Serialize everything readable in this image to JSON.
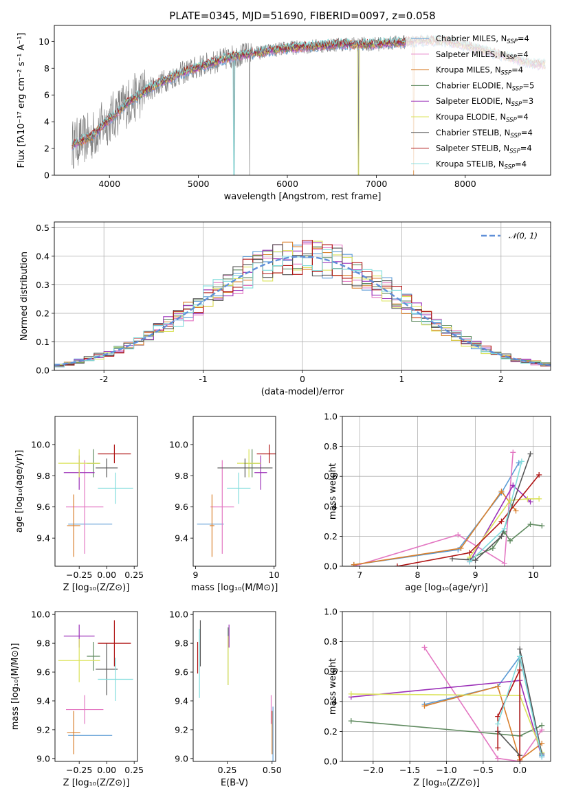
{
  "figure_title": "PLATE=0345, MJD=51690, FIBERID=0097, z=0.058",
  "colors": {
    "Chabrier MILES": "#5b9bd5",
    "Salpeter MILES": "#e377c2",
    "Kroupa MILES": "#d97f2b",
    "Chabrier ELODIE": "#5f8a5f",
    "Salpeter ELODIE": "#9b30b8",
    "Kroupa ELODIE": "#dbe35a",
    "Chabrier STELIB": "#555555",
    "Salpeter STELIB": "#b01515",
    "Kroupa STELIB": "#7fdcdc",
    "observed": "#808080",
    "normal": "#5f8fd8"
  },
  "chart_data": [
    {
      "type": "line",
      "panel": "spectrum",
      "title": "PLATE=0345, MJD=51690, FIBERID=0097, z=0.058",
      "xlabel": "wavelength [Angstrom, rest frame]",
      "ylabel": "Flux [fλ10⁻¹⁷ erg cm⁻² s⁻¹ A⁻¹]",
      "xlim": [
        3380,
        8960
      ],
      "ylim": [
        0,
        11.2
      ],
      "xticks": [
        4000,
        5000,
        6000,
        7000,
        8000
      ],
      "yticks": [
        0,
        2,
        4,
        6,
        8,
        10
      ],
      "legend": [
        "Chabrier MILES, N_SSP=4",
        "Salpeter MILES, N_SSP=4",
        "Kroupa MILES, N_SSP=4",
        "Chabrier ELODIE, N_SSP=5",
        "Salpeter ELODIE, N_SSP=3",
        "Kroupa ELODIE, N_SSP=4",
        "Chabrier STELIB, N_SSP=4",
        "Salpeter STELIB, N_SSP=4",
        "Kroupa STELIB, N_SSP=4"
      ],
      "legend_location": "right",
      "observed_range": [
        3580,
        7420
      ],
      "continuum": {
        "x": [
          3580,
          3800,
          4000,
          4200,
          4400,
          4600,
          4800,
          5000,
          5200,
          5400,
          5600,
          5800,
          6000,
          6200,
          6400,
          6600,
          6800,
          7000,
          7200,
          7400,
          7600,
          7800,
          8000,
          8200,
          8400,
          8600,
          8800
        ],
        "y": [
          2.3,
          2.9,
          4.2,
          5.4,
          6.3,
          7.0,
          7.6,
          8.1,
          8.5,
          8.9,
          9.1,
          9.3,
          9.5,
          9.6,
          9.7,
          9.8,
          9.8,
          9.8,
          9.9,
          10.0,
          10.1,
          10.0,
          9.7,
          9.4,
          9.0,
          8.6,
          8.3
        ]
      }
    },
    {
      "type": "line",
      "panel": "residual-histogram",
      "xlabel": "(data-model)/error",
      "ylabel": "Normed distribution",
      "xlim": [
        -2.5,
        2.5
      ],
      "ylim": [
        0,
        0.52
      ],
      "xticks": [
        -2,
        -1,
        0,
        1,
        2
      ],
      "yticks": [
        0.0,
        0.1,
        0.2,
        0.3,
        0.4,
        0.5
      ],
      "grid": true,
      "legend": [
        "𝒩(0, 1)"
      ],
      "legend_location": "top-right",
      "bin_width": 0.1,
      "bin_start": -2.5,
      "reference_curve": "normal(0,1)"
    },
    {
      "type": "scatter",
      "panel": "age-vs-Z",
      "xlabel": "Z [log₁₀(Z/Z⊙)]",
      "ylabel": "age  [log₁₀(age/yr)]",
      "xlim": [
        -0.47,
        0.28
      ],
      "ylim": [
        9.22,
        10.18
      ],
      "xticks": [
        -0.25,
        0.0,
        0.25
      ],
      "xticklabels": [
        "−0.25",
        "0.00",
        "0.25"
      ],
      "yticks": [
        9.4,
        9.6,
        9.8,
        10.0
      ],
      "points": [
        {
          "series": "Chabrier MILES",
          "x": -0.15,
          "xerr": 0.2,
          "y": 9.49,
          "yerr": 0.0
        },
        {
          "series": "Salpeter MILES",
          "x": -0.2,
          "xerr": 0.17,
          "y": 9.6,
          "yerr": 0.3
        },
        {
          "series": "Kroupa MILES",
          "x": -0.3,
          "xerr": 0.06,
          "y": 9.48,
          "yerr": 0.2
        },
        {
          "series": "Chabrier ELODIE",
          "x": -0.12,
          "xerr": 0.06,
          "y": 9.88,
          "yerr": 0.09
        },
        {
          "series": "Salpeter ELODIE",
          "x": -0.25,
          "xerr": 0.14,
          "y": 9.82,
          "yerr": 0.11
        },
        {
          "series": "Kroupa ELODIE",
          "x": -0.25,
          "xerr": 0.19,
          "y": 9.88,
          "yerr": 0.09
        },
        {
          "series": "Chabrier STELIB",
          "x": 0.0,
          "xerr": 0.1,
          "y": 9.85,
          "yerr": 0.06
        },
        {
          "series": "Salpeter STELIB",
          "x": 0.07,
          "xerr": 0.15,
          "y": 9.94,
          "yerr": 0.06
        },
        {
          "series": "Kroupa STELIB",
          "x": 0.08,
          "xerr": 0.16,
          "y": 9.72,
          "yerr": 0.1
        }
      ]
    },
    {
      "type": "scatter",
      "panel": "age-vs-mass",
      "xlabel": "mass [log₁₀(M/M⊙)]",
      "ylabel": "",
      "xlim": [
        8.97,
        10.02
      ],
      "ylim": [
        9.22,
        10.18
      ],
      "xticks": [
        9,
        10
      ],
      "yticks": [
        9.4,
        9.6,
        9.8,
        10.0
      ],
      "points": [
        {
          "series": "Chabrier MILES",
          "x": 9.19,
          "xerr": 0.17,
          "y": 9.49,
          "yerr": 0.0
        },
        {
          "series": "Salpeter MILES",
          "x": 9.34,
          "xerr": 0.15,
          "y": 9.6,
          "yerr": 0.3
        },
        {
          "series": "Kroupa MILES",
          "x": 9.21,
          "xerr": 0.03,
          "y": 9.48,
          "yerr": 0.2
        },
        {
          "series": "Chabrier ELODIE",
          "x": 9.72,
          "xerr": 0.1,
          "y": 9.88,
          "yerr": 0.09
        },
        {
          "series": "Salpeter ELODIE",
          "x": 9.83,
          "xerr": 0.08,
          "y": 9.82,
          "yerr": 0.11
        },
        {
          "series": "Kroupa ELODIE",
          "x": 9.68,
          "xerr": 0.15,
          "y": 9.88,
          "yerr": 0.09
        },
        {
          "series": "Chabrier STELIB",
          "x": 9.63,
          "xerr": 0.35,
          "y": 9.85,
          "yerr": 0.06
        },
        {
          "series": "Salpeter STELIB",
          "x": 9.94,
          "xerr": 0.16,
          "y": 9.94,
          "yerr": 0.06
        },
        {
          "series": "Kroupa STELIB",
          "x": 9.55,
          "xerr": 0.15,
          "y": 9.72,
          "yerr": 0.1
        }
      ]
    },
    {
      "type": "line",
      "panel": "mass-weight-vs-age",
      "xlabel": "age  [log₁₀(age/yr)]",
      "ylabel": "mass weight",
      "xlim": [
        6.7,
        10.3
      ],
      "ylim": [
        0,
        1.0
      ],
      "xticks": [
        7,
        8,
        9,
        10
      ],
      "yticks": [
        0.0,
        0.2,
        0.4,
        0.6,
        0.8,
        1.0
      ],
      "grid": true,
      "series": [
        {
          "name": "Chabrier MILES",
          "x": [
            6.9,
            8.7,
            9.45,
            9.75
          ],
          "y": [
            0.01,
            0.11,
            0.49,
            0.69
          ]
        },
        {
          "name": "Salpeter MILES",
          "x": [
            6.9,
            8.7,
            9.5,
            9.65
          ],
          "y": [
            0.0,
            0.21,
            0.02,
            0.76
          ]
        },
        {
          "name": "Kroupa MILES",
          "x": [
            6.9,
            8.75,
            9.45,
            9.7
          ],
          "y": [
            0.01,
            0.12,
            0.5,
            0.37
          ]
        },
        {
          "name": "Chabrier ELODIE",
          "x": [
            8.9,
            9.3,
            9.5,
            9.6,
            9.95,
            10.15
          ],
          "y": [
            0.05,
            0.12,
            0.23,
            0.17,
            0.28,
            0.27
          ]
        },
        {
          "name": "Salpeter ELODIE",
          "x": [
            8.9,
            9.65,
            9.95
          ],
          "y": [
            0.03,
            0.54,
            0.43
          ]
        },
        {
          "name": "Kroupa ELODIE",
          "x": [
            8.9,
            9.6,
            9.9,
            10.1
          ],
          "y": [
            0.06,
            0.44,
            0.45,
            0.45
          ]
        },
        {
          "name": "Chabrier STELIB",
          "x": [
            8.6,
            9.0,
            9.45,
            9.95
          ],
          "y": [
            0.05,
            0.04,
            0.2,
            0.75
          ]
        },
        {
          "name": "Salpeter STELIB",
          "x": [
            7.65,
            8.9,
            9.45,
            10.1
          ],
          "y": [
            0.0,
            0.09,
            0.3,
            0.61
          ]
        },
        {
          "name": "Kroupa STELIB",
          "x": [
            8.9,
            9.5,
            9.8
          ],
          "y": [
            0.03,
            0.25,
            0.7
          ]
        }
      ]
    },
    {
      "type": "scatter",
      "panel": "mass-vs-Z",
      "xlabel": "Z [log₁₀(Z/Z⊙)]",
      "ylabel": "mass [log₁₀(M/M⊙)]",
      "xlim": [
        -0.47,
        0.28
      ],
      "ylim": [
        8.98,
        10.02
      ],
      "xticks": [
        -0.25,
        0.0,
        0.25
      ],
      "xticklabels": [
        "−0.25",
        "0.00",
        "0.25"
      ],
      "yticks": [
        9.0,
        9.2,
        9.4,
        9.6,
        9.8,
        10.0
      ],
      "points": [
        {
          "series": "Chabrier MILES",
          "x": -0.15,
          "xerr": 0.2,
          "y": 9.16,
          "yerr": 0.0
        },
        {
          "series": "Salpeter MILES",
          "x": -0.2,
          "xerr": 0.17,
          "y": 9.34,
          "yerr": 0.1
        },
        {
          "series": "Kroupa MILES",
          "x": -0.3,
          "xerr": 0.06,
          "y": 9.18,
          "yerr": 0.15
        },
        {
          "series": "Chabrier ELODIE",
          "x": -0.12,
          "xerr": 0.06,
          "y": 9.71,
          "yerr": 0.1
        },
        {
          "series": "Salpeter ELODIE",
          "x": -0.25,
          "xerr": 0.14,
          "y": 9.85,
          "yerr": 0.08
        },
        {
          "series": "Kroupa ELODIE",
          "x": -0.25,
          "xerr": 0.19,
          "y": 9.68,
          "yerr": 0.15
        },
        {
          "series": "Chabrier STELIB",
          "x": 0.0,
          "xerr": 0.1,
          "y": 9.62,
          "yerr": 0.18
        },
        {
          "series": "Salpeter STELIB",
          "x": 0.07,
          "xerr": 0.15,
          "y": 9.8,
          "yerr": 0.16
        },
        {
          "series": "Kroupa STELIB",
          "x": 0.08,
          "xerr": 0.16,
          "y": 9.55,
          "yerr": 0.15
        }
      ]
    },
    {
      "type": "scatter",
      "panel": "mass-vs-EBV",
      "xlabel": "E(B-V)",
      "ylabel": "",
      "xlim": [
        0.06,
        0.52
      ],
      "ylim": [
        8.98,
        10.02
      ],
      "xticks": [
        0.25,
        0.5
      ],
      "xticklabels": [
        "0.25",
        "0.50"
      ],
      "yticks": [
        9.0,
        9.2,
        9.4,
        9.6,
        9.8,
        10.0
      ],
      "points": [
        {
          "series": "Chabrier MILES",
          "x": 0.505,
          "y": 9.16,
          "yerr": 0.2
        },
        {
          "series": "Salpeter MILES",
          "x": 0.495,
          "y": 9.34,
          "yerr": 0.1
        },
        {
          "series": "Kroupa MILES",
          "x": 0.5,
          "y": 9.18,
          "yerr": 0.15
        },
        {
          "series": "Chabrier ELODIE",
          "x": 0.255,
          "y": 9.71,
          "yerr": 0.2
        },
        {
          "series": "Salpeter ELODIE",
          "x": 0.26,
          "y": 9.85,
          "yerr": 0.08
        },
        {
          "series": "Kroupa ELODIE",
          "x": 0.255,
          "y": 9.68,
          "yerr": 0.17
        },
        {
          "series": "Chabrier STELIB",
          "x": 0.1,
          "y": 9.8,
          "yerr": 0.16
        },
        {
          "series": "Salpeter STELIB",
          "x": 0.085,
          "y": 9.7,
          "yerr": 0.11
        },
        {
          "series": "Kroupa STELIB",
          "x": 0.095,
          "y": 9.66,
          "yerr": 0.24
        }
      ]
    },
    {
      "type": "line",
      "panel": "mass-weight-vs-Z",
      "xlabel": "Z [log₁₀(Z/Z⊙)]",
      "ylabel": "mass weight",
      "xlim": [
        -2.42,
        0.42
      ],
      "ylim": [
        0,
        1.0
      ],
      "xticks": [
        -2.0,
        -1.5,
        -1.0,
        -0.5,
        0.0
      ],
      "xticklabels": [
        "−2.0",
        "−1.5",
        "−1.0",
        "−0.5",
        "0.0"
      ],
      "yticks": [
        0.0,
        0.2,
        0.4,
        0.6,
        0.8,
        1.0
      ],
      "grid": true,
      "series": [
        {
          "name": "Chabrier MILES",
          "x": [
            -1.3,
            -0.3,
            0.0,
            0.3
          ],
          "y": [
            0.38,
            0.5,
            0.7,
            0.04
          ]
        },
        {
          "name": "Salpeter MILES",
          "x": [
            -1.3,
            -0.3,
            0.0,
            0.3
          ],
          "y": [
            0.76,
            0.02,
            0.0,
            0.21
          ]
        },
        {
          "name": "Kroupa MILES",
          "x": [
            -1.3,
            -0.3,
            0.0,
            0.3
          ],
          "y": [
            0.37,
            0.5,
            0.01,
            0.12
          ]
        },
        {
          "name": "Chabrier ELODIE",
          "x": [
            -2.3,
            0.0,
            0.3
          ],
          "y": [
            0.27,
            0.17,
            0.24
          ]
        },
        {
          "name": "Salpeter ELODIE",
          "x": [
            -2.3,
            0.0,
            0.3
          ],
          "y": [
            0.43,
            0.54,
            0.03
          ]
        },
        {
          "name": "Kroupa ELODIE",
          "x": [
            -2.3,
            0.0,
            0.3
          ],
          "y": [
            0.45,
            0.44,
            0.06
          ]
        },
        {
          "name": "Chabrier STELIB",
          "x": [
            -0.3,
            0.0,
            0.0,
            0.3
          ],
          "y": [
            0.2,
            0.04,
            0.75,
            0.05
          ]
        },
        {
          "name": "Salpeter STELIB",
          "x": [
            -0.3,
            -0.3,
            0.0,
            0.0
          ],
          "y": [
            0.09,
            0.3,
            0.61,
            0.0
          ]
        },
        {
          "name": "Kroupa STELIB",
          "x": [
            -0.3,
            0.0,
            0.3
          ],
          "y": [
            0.25,
            0.7,
            0.03
          ]
        }
      ]
    }
  ]
}
